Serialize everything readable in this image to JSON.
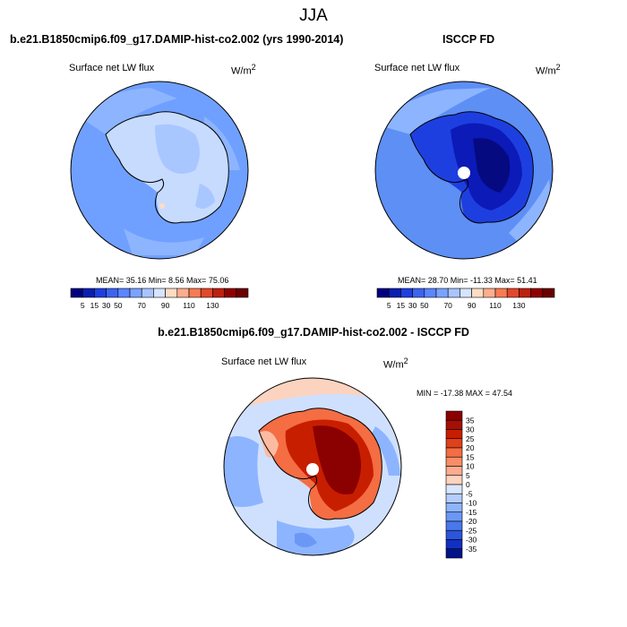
{
  "figure": {
    "title": "JJA"
  },
  "palette": {
    "ocean": "#6fa0ff",
    "ocean_light": "#8db4ff",
    "land_model": "#c7dbff",
    "land_model_mid": "#a9c7ff",
    "obs_ocean": "#5d8ff5",
    "obs_land_dark": "#0c1ab8",
    "obs_land_mid": "#1e3fe0",
    "obs_land_deep": "#050a80",
    "diff_red": "#c81e00",
    "diff_dark": "#8b0000",
    "diff_orange": "#f46d43",
    "diff_peach": "#fcbba1",
    "pole_hole": "#ffffff",
    "coastline": "#000000"
  },
  "chart_data": [
    {
      "type": "heatmap",
      "panel": "top-left",
      "case_title": "b.e21.B1850cmip6.f09_g17.DAMIP-hist-co2.002 (yrs 1990-2014)",
      "left_label": "Surface net LW flux",
      "units_base": "W/m",
      "units_exp": "2",
      "stats": "MEAN= 35.16 Min= 8.56 Max= 75.06",
      "stat_values": {
        "mean": 35.16,
        "min": 8.56,
        "max": 75.06
      },
      "colorbar_ticks": [
        "5",
        "15",
        "30",
        "50",
        "70",
        "90",
        "110",
        "130"
      ],
      "colorbar_colors": [
        "#00007f",
        "#0a1fb0",
        "#1e3fe0",
        "#3c64f0",
        "#5a86ff",
        "#7aa3ff",
        "#a8c4ff",
        "#d6e4ff",
        "#fddcc4",
        "#fcae8e",
        "#f67b54",
        "#e2482c",
        "#bd200f",
        "#900000",
        "#6a0000"
      ],
      "legend_placement": "bottom"
    },
    {
      "type": "heatmap",
      "panel": "top-right",
      "case_title": "ISCCP FD",
      "left_label": "Surface net LW flux",
      "units_base": "W/m",
      "units_exp": "2",
      "stats": "MEAN= 28.70 Min= -11.33 Max= 51.41",
      "stat_values": {
        "mean": 28.7,
        "min": -11.33,
        "max": 51.41
      },
      "colorbar_ticks": [
        "5",
        "15",
        "30",
        "50",
        "70",
        "90",
        "110",
        "130"
      ],
      "colorbar_colors": [
        "#00007f",
        "#0a1fb0",
        "#1e3fe0",
        "#3c64f0",
        "#5a86ff",
        "#7aa3ff",
        "#a8c4ff",
        "#d6e4ff",
        "#fddcc4",
        "#fcae8e",
        "#f67b54",
        "#e2482c",
        "#bd200f",
        "#900000",
        "#6a0000"
      ],
      "legend_placement": "bottom"
    },
    {
      "type": "heatmap",
      "panel": "bottom",
      "case_title": "b.e21.B1850cmip6.f09_g17.DAMIP-hist-co2.002 - ISCCP FD",
      "left_label": "Surface net LW flux",
      "units_base": "W/m",
      "units_exp": "2",
      "stats": "MIN = -17.38 MAX = 47.54",
      "stat_values": {
        "min": -17.38,
        "max": 47.54
      },
      "colorbar_ticks": [
        "35",
        "30",
        "25",
        "20",
        "15",
        "10",
        "5",
        "0",
        "-5",
        "-10",
        "-15",
        "-20",
        "-25",
        "-30",
        "-35"
      ],
      "colorbar_colors": [
        "#8b0000",
        "#a50f05",
        "#c81e00",
        "#e0401a",
        "#f46d43",
        "#f88d68",
        "#fcab8f",
        "#fcd3bf",
        "#d9e6ff",
        "#b5cdff",
        "#8db4ff",
        "#6b98f5",
        "#4a78eb",
        "#2c55dd",
        "#1230c0",
        "#00148a"
      ],
      "legend_placement": "right"
    }
  ]
}
